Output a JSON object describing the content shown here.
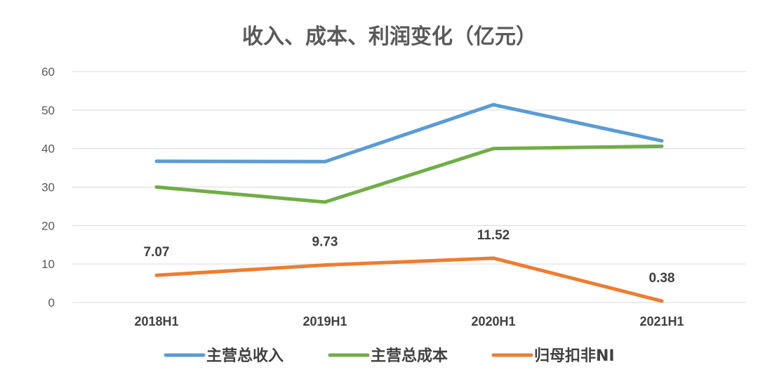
{
  "chart_data": {
    "type": "line",
    "title": "收入、成本、利润变化（亿元）",
    "categories": [
      "2018H1",
      "2019H1",
      "2020H1",
      "2021H1"
    ],
    "ylim": [
      0,
      60
    ],
    "yticks": [
      0,
      10,
      20,
      30,
      40,
      50,
      60
    ],
    "grid": true,
    "legend_position": "bottom",
    "series": [
      {
        "name": "主营总收入",
        "color": "#5B9BD5",
        "values": [
          36.7,
          36.6,
          51.4,
          42.0
        ],
        "data_labels": false
      },
      {
        "name": "主营总成本",
        "color": "#70AD47",
        "values": [
          30.0,
          26.1,
          40.0,
          40.6
        ],
        "data_labels": false
      },
      {
        "name": "归母扣非NI",
        "color": "#ED7D31",
        "values": [
          7.07,
          9.73,
          11.52,
          0.38
        ],
        "data_labels": true,
        "labels": [
          "7.07",
          "9.73",
          "11.52",
          "0.38"
        ]
      }
    ]
  }
}
